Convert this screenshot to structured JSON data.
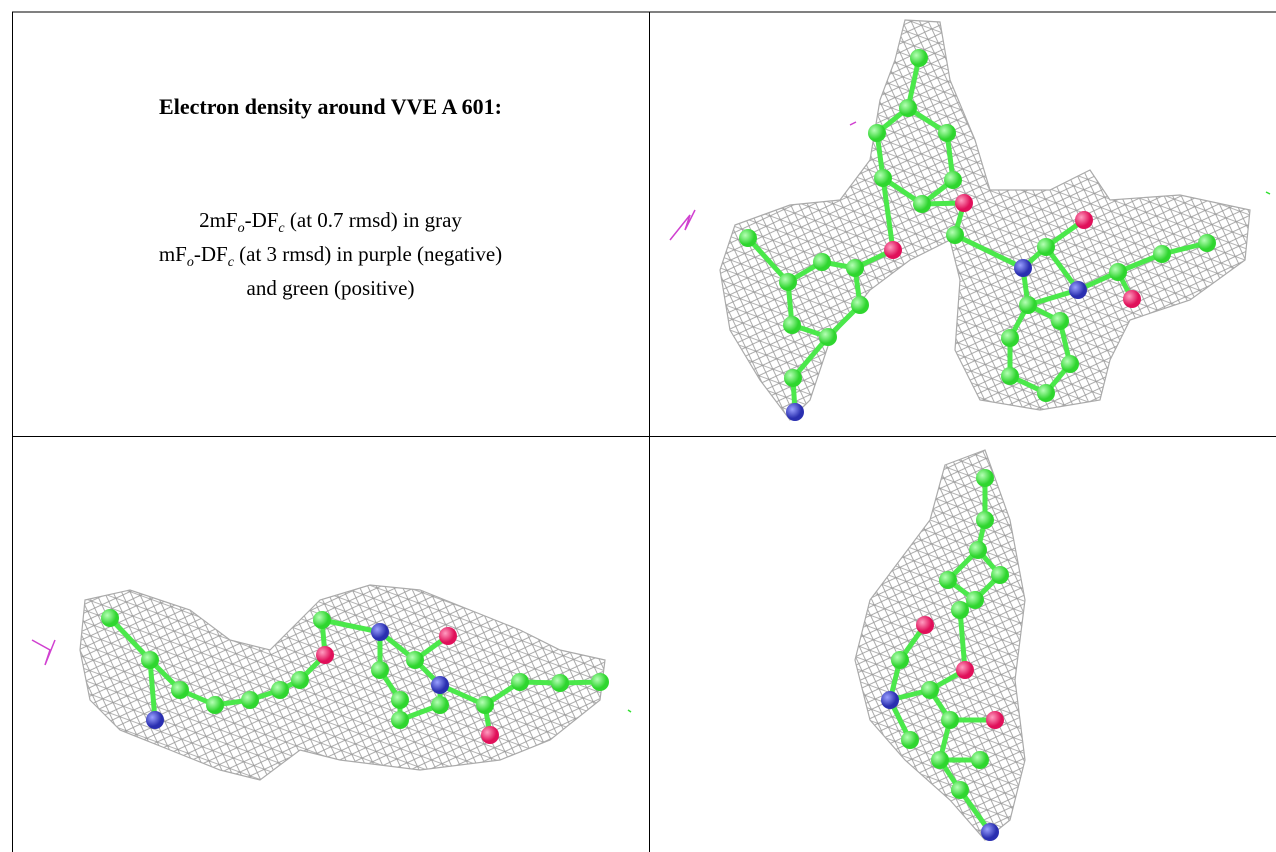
{
  "header": {
    "title": "Electron density around VVE A 601:"
  },
  "legend": {
    "lines": [
      {
        "parts": [
          "2mF",
          "o",
          "-DF",
          "c",
          " (at 0.7 rmsd) in gray"
        ]
      },
      {
        "parts": [
          "mF",
          "o",
          "-DF",
          "c",
          " (at 3 rmsd) in purple (negative)"
        ]
      },
      {
        "parts": [
          "and green (positive)"
        ]
      }
    ]
  }
}
